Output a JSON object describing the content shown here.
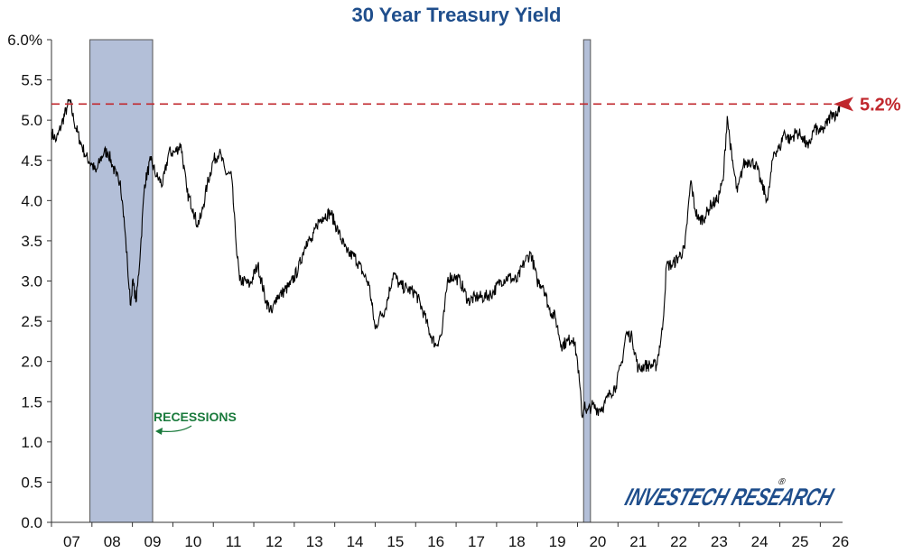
{
  "chart_data": {
    "type": "line",
    "title": "30 Year Treasury Yield",
    "xlabel": "",
    "ylabel": "",
    "x_categories": [
      "07",
      "08",
      "09",
      "10",
      "11",
      "12",
      "13",
      "14",
      "15",
      "16",
      "17",
      "18",
      "19",
      "20",
      "21",
      "22",
      "23",
      "24",
      "25",
      "26"
    ],
    "xlim": [
      2007.0,
      2026.55
    ],
    "ylim": [
      0,
      6
    ],
    "y_ticks": [
      "0.0",
      "0.5",
      "1.0",
      "1.5",
      "2.0",
      "2.5",
      "3.0",
      "3.5",
      "4.0",
      "4.5",
      "5.0",
      "5.5",
      "6.0%"
    ],
    "grid": false,
    "series": [
      {
        "x": [
          2007.0,
          2007.12,
          2007.25,
          2007.38,
          2007.45,
          2007.55,
          2007.7,
          2007.85,
          2008.0,
          2008.1,
          2008.2,
          2008.3,
          2008.4,
          2008.5,
          2008.6,
          2008.7,
          2008.75,
          2008.82,
          2008.88,
          2008.92,
          2008.96,
          2009.0,
          2009.1,
          2009.2,
          2009.3,
          2009.45,
          2009.6,
          2009.75,
          2009.9,
          2010.05,
          2010.2,
          2010.35,
          2010.5,
          2010.6,
          2010.7,
          2010.85,
          2011.0,
          2011.15,
          2011.3,
          2011.45,
          2011.55,
          2011.65,
          2011.75,
          2011.9,
          2012.1,
          2012.3,
          2012.45,
          2012.55,
          2012.7,
          2012.9,
          2013.1,
          2013.3,
          2013.45,
          2013.55,
          2013.7,
          2013.9,
          2014.1,
          2014.3,
          2014.5,
          2014.7,
          2014.85,
          2015.0,
          2015.1,
          2015.25,
          2015.45,
          2015.6,
          2015.8,
          2016.0,
          2016.2,
          2016.35,
          2016.5,
          2016.65,
          2016.8,
          2016.95,
          2017.1,
          2017.3,
          2017.5,
          2017.7,
          2017.9,
          2018.1,
          2018.3,
          2018.5,
          2018.7,
          2018.85,
          2019.0,
          2019.15,
          2019.3,
          2019.45,
          2019.6,
          2019.75,
          2019.9,
          2020.0,
          2020.12,
          2020.18,
          2020.22,
          2020.35,
          2020.5,
          2020.65,
          2020.8,
          2020.95,
          2021.1,
          2021.2,
          2021.35,
          2021.5,
          2021.65,
          2021.8,
          2021.95,
          2022.1,
          2022.2,
          2022.35,
          2022.5,
          2022.65,
          2022.8,
          2022.9,
          2023.0,
          2023.15,
          2023.3,
          2023.45,
          2023.6,
          2023.7,
          2023.82,
          2023.95,
          2024.1,
          2024.25,
          2024.4,
          2024.55,
          2024.7,
          2024.85,
          2025.0,
          2025.1,
          2025.25,
          2025.4,
          2025.55,
          2025.7,
          2025.85,
          2026.0,
          2026.1,
          2026.2,
          2026.3,
          2026.4,
          2026.48
        ],
        "y": [
          4.85,
          4.75,
          4.95,
          5.15,
          5.25,
          5.0,
          4.75,
          4.55,
          4.45,
          4.35,
          4.5,
          4.6,
          4.6,
          4.45,
          4.3,
          4.25,
          4.0,
          3.6,
          3.2,
          2.9,
          2.7,
          3.0,
          2.75,
          3.4,
          4.2,
          4.5,
          4.3,
          4.2,
          4.6,
          4.6,
          4.7,
          4.1,
          3.9,
          3.7,
          3.8,
          4.2,
          4.5,
          4.6,
          4.35,
          4.3,
          3.55,
          3.0,
          3.0,
          2.95,
          3.2,
          2.75,
          2.6,
          2.8,
          2.85,
          2.95,
          3.15,
          3.5,
          3.5,
          3.7,
          3.8,
          3.85,
          3.6,
          3.35,
          3.3,
          3.1,
          2.95,
          2.4,
          2.55,
          2.65,
          3.1,
          2.95,
          2.9,
          2.85,
          2.6,
          2.35,
          2.2,
          2.35,
          3.05,
          3.05,
          3.0,
          2.75,
          2.8,
          2.8,
          2.85,
          3.0,
          3.05,
          3.0,
          3.25,
          3.35,
          3.0,
          2.95,
          2.65,
          2.55,
          2.2,
          2.25,
          2.3,
          2.0,
          1.3,
          1.5,
          1.35,
          1.45,
          1.4,
          1.45,
          1.6,
          1.7,
          2.0,
          2.35,
          2.3,
          1.9,
          1.95,
          1.95,
          1.95,
          2.4,
          3.2,
          3.2,
          3.3,
          3.4,
          4.25,
          3.9,
          3.75,
          3.8,
          3.95,
          4.0,
          4.25,
          5.05,
          4.5,
          4.1,
          4.45,
          4.5,
          4.45,
          4.2,
          4.0,
          4.6,
          4.65,
          4.85,
          4.75,
          4.85,
          4.8,
          4.65,
          4.9,
          4.85,
          4.9,
          5.0,
          5.1,
          5.05,
          5.2
        ]
      }
    ],
    "reference_line": {
      "value": 5.2,
      "label": "5.2%",
      "color": "#c0272d",
      "style": "dashed"
    },
    "recession_bands": [
      [
        2007.95,
        2009.5
      ],
      [
        2020.15,
        2020.32
      ]
    ],
    "annotations": {
      "recessions_label": "RECESSIONS",
      "recessions_color": "#1a7a3c"
    },
    "colors": {
      "line": "#000000",
      "recession_fill": "#b3bfd8",
      "recession_stroke": "#555555",
      "title": "#1f4e8c",
      "logo": "#1f4e8c"
    }
  },
  "logo": {
    "text": "INVESTECH RESEARCH",
    "registered": "®"
  }
}
